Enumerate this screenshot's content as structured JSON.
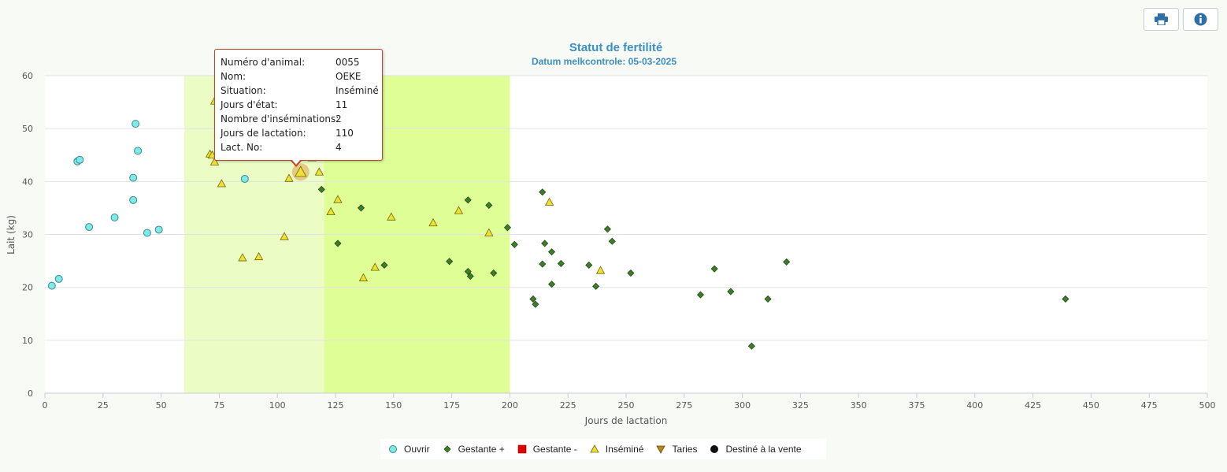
{
  "toolbar": {
    "print_icon": "print-icon",
    "info_icon": "info-icon"
  },
  "chart_data": {
    "type": "scatter",
    "title": "Statut de fertilité",
    "subtitle": "Datum melkcontrole: 05-03-2025",
    "xlabel": "Jours de lactation",
    "ylabel": "Lait (kg)",
    "xlim": [
      0,
      500
    ],
    "ylim": [
      0,
      60
    ],
    "x_ticks": [
      0,
      25,
      50,
      75,
      100,
      125,
      150,
      175,
      200,
      225,
      250,
      275,
      300,
      325,
      350,
      375,
      400,
      425,
      450,
      475,
      500
    ],
    "y_ticks": [
      0,
      10,
      20,
      30,
      40,
      50,
      60
    ],
    "grid": "horizontal",
    "legend_position": "bottom",
    "bands": [
      {
        "from": 60,
        "to": 120,
        "color": "#ebfcc4"
      },
      {
        "from": 120,
        "to": 200,
        "color": "#dfff96"
      }
    ],
    "series": [
      {
        "name": "Ouvrir",
        "marker": "circle",
        "color": "#7fe8e8",
        "points": [
          [
            3,
            20.3
          ],
          [
            6,
            21.6
          ],
          [
            14,
            43.8
          ],
          [
            15,
            44.1
          ],
          [
            19,
            31.4
          ],
          [
            30,
            33.2
          ],
          [
            38,
            36.5
          ],
          [
            38,
            40.7
          ],
          [
            39,
            50.9
          ],
          [
            40,
            45.8
          ],
          [
            44,
            30.3
          ],
          [
            49,
            30.9
          ],
          [
            86,
            40.5
          ]
        ]
      },
      {
        "name": "Gestante +",
        "marker": "diamond",
        "color": "#3f7d2a",
        "points": [
          [
            119,
            38.5
          ],
          [
            126,
            28.3
          ],
          [
            136,
            35
          ],
          [
            146,
            24.2
          ],
          [
            174,
            24.9
          ],
          [
            182,
            36.5
          ],
          [
            182,
            23
          ],
          [
            183,
            22.1
          ],
          [
            191,
            35.5
          ],
          [
            193,
            22.7
          ],
          [
            199,
            31.3
          ],
          [
            202,
            28.1
          ],
          [
            210,
            17.8
          ],
          [
            211,
            16.8
          ],
          [
            214,
            38
          ],
          [
            214,
            24.4
          ],
          [
            215,
            28.3
          ],
          [
            218,
            26.7
          ],
          [
            218,
            20.6
          ],
          [
            222,
            24.5
          ],
          [
            234,
            24.2
          ],
          [
            237,
            20.2
          ],
          [
            242,
            31
          ],
          [
            244,
            28.7
          ],
          [
            252,
            22.7
          ],
          [
            282,
            18.6
          ],
          [
            288,
            23.5
          ],
          [
            295,
            19.2
          ],
          [
            304,
            8.9
          ],
          [
            311,
            17.8
          ],
          [
            319,
            24.8
          ],
          [
            439,
            17.8
          ]
        ]
      },
      {
        "name": "Gestante -",
        "marker": "square",
        "color": "#e00000",
        "points": []
      },
      {
        "name": "Inséminé",
        "marker": "triangle-up",
        "color": "#f0e030",
        "points": [
          [
            71,
            45.2
          ],
          [
            72,
            45
          ],
          [
            73,
            43.7
          ],
          [
            73,
            55.2
          ],
          [
            76,
            39.6
          ],
          [
            85,
            25.6
          ],
          [
            92,
            25.8
          ],
          [
            103,
            29.6
          ],
          [
            105,
            40.6
          ],
          [
            110,
            41.8
          ],
          [
            115,
            44.5
          ],
          [
            118,
            41.8
          ],
          [
            123,
            34.3
          ],
          [
            126,
            36.6
          ],
          [
            137,
            21.8
          ],
          [
            142,
            23.8
          ],
          [
            149,
            33.3
          ],
          [
            167,
            32.2
          ],
          [
            178,
            34.5
          ],
          [
            191,
            30.3
          ],
          [
            217,
            36.1
          ],
          [
            239,
            23.2
          ]
        ]
      },
      {
        "name": "Taries",
        "marker": "triangle-down",
        "color": "#b8861b",
        "points": []
      },
      {
        "name": "Destiné à la vente",
        "marker": "circle",
        "color": "#111111",
        "points": []
      }
    ],
    "highlight_point": {
      "x": 110,
      "y": 41.8
    },
    "tooltip": {
      "rows": [
        {
          "label": "Numéro d'animal:",
          "value": "0055"
        },
        {
          "label": "Nom:",
          "value": "OEKE"
        },
        {
          "label": "Situation:",
          "value": "Inséminé"
        },
        {
          "label": "Jours d'état:",
          "value": "11"
        },
        {
          "label": "Nombre d'inséminations:",
          "value": "2"
        },
        {
          "label": "Jours de lactation:",
          "value": "110"
        },
        {
          "label": "Lact. No:",
          "value": "4"
        }
      ]
    }
  }
}
